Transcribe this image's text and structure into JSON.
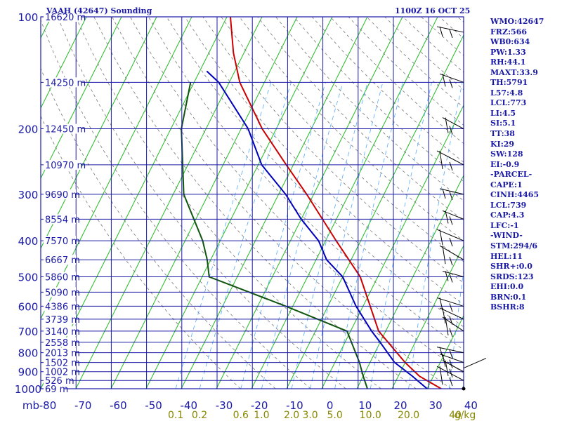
{
  "header": {
    "left": "VAAH (42647) Sounding",
    "right": "1100Z 16 OCT 25"
  },
  "indices": [
    "WMO:42647",
    "FRZ:566",
    "WB0:634",
    "PW:1.33",
    "RH:44.1",
    "MAXT:33.9",
    "TH:5791",
    "L57:4.8",
    "LCL:773",
    "LI:4.5",
    "SI:5.1",
    "TT:38",
    "KI:29",
    "SW:128",
    "EI:-0.9",
    "-PARCEL-",
    "CAPE:1",
    "CINH:4465",
    "LCL:739",
    "CAP:4.3",
    "LFC:-1",
    "-WIND-",
    "STM:294/6",
    "HEL:11",
    "SHR+:0.0",
    "SRDS:123",
    "EHI:0.0",
    "BRN:0.1",
    "BSHR:8"
  ],
  "colors": {
    "frame": "#1a1aa6",
    "isotherm": "#22bb22",
    "dry_adiabat": "#777777",
    "mixing_ratio": "#55aaff",
    "temperature": "#cc0000",
    "dewpoint": "#115511",
    "parcel": "#0000bb",
    "wind": "#000000"
  },
  "chart_data": {
    "type": "line",
    "title": "VAAH (42647) Sounding",
    "x_unit_label": "mb",
    "x_ticks": [
      -80,
      -70,
      -60,
      -50,
      -40,
      -30,
      -20,
      -10,
      0,
      10,
      20,
      30,
      40
    ],
    "x_tick_labels": [
      "-80",
      "-70",
      "-60",
      "-50",
      "-40",
      "-30",
      "-20",
      "-10",
      "0",
      "10",
      "20",
      "30",
      "40"
    ],
    "y_ticks": [
      100,
      200,
      300,
      400,
      500,
      600,
      700,
      800,
      900,
      1000
    ],
    "y_tick_labels": [
      "100",
      "200",
      "300",
      "400",
      "500",
      "600",
      "700",
      "800",
      "900",
      "1000"
    ],
    "height_labels": [
      {
        "p": 100,
        "label": "16620 m"
      },
      {
        "p": 150,
        "label": "14250 m"
      },
      {
        "p": 200,
        "label": "12450 m"
      },
      {
        "p": 250,
        "label": "10970 m"
      },
      {
        "p": 300,
        "label": "9690 m"
      },
      {
        "p": 350,
        "label": "8554 m"
      },
      {
        "p": 400,
        "label": "7570 m"
      },
      {
        "p": 450,
        "label": "6667 m"
      },
      {
        "p": 500,
        "label": "5860 m"
      },
      {
        "p": 550,
        "label": "5090 m"
      },
      {
        "p": 600,
        "label": "4386 m"
      },
      {
        "p": 650,
        "label": "3739 m"
      },
      {
        "p": 700,
        "label": "3140 m"
      },
      {
        "p": 750,
        "label": "2558 m"
      },
      {
        "p": 800,
        "label": "2013 m"
      },
      {
        "p": 850,
        "label": "1502 m"
      },
      {
        "p": 900,
        "label": "1002 m"
      },
      {
        "p": 950,
        "label": "526 m"
      },
      {
        "p": 1000,
        "label": "69 m"
      }
    ],
    "mixing_ratio_labels": [
      "0.1",
      "0.2",
      "0.6",
      "1.0",
      "2.0",
      "3.0",
      "5.0",
      "10.0",
      "20.0",
      "40"
    ],
    "mixing_ratio_unit": "g/kg",
    "series": [
      {
        "name": "Temperature",
        "points": [
          [
            1000,
            34
          ],
          [
            925,
            26
          ],
          [
            850,
            20
          ],
          [
            700,
            8
          ],
          [
            500,
            -5
          ],
          [
            400,
            -17
          ],
          [
            300,
            -32
          ],
          [
            250,
            -42
          ],
          [
            200,
            -54
          ],
          [
            150,
            -67
          ],
          [
            125,
            -73
          ],
          [
            100,
            -79
          ]
        ]
      },
      {
        "name": "Dewpoint",
        "points": [
          [
            1000,
            13
          ],
          [
            925,
            10
          ],
          [
            850,
            7
          ],
          [
            700,
            -1
          ],
          [
            600,
            -22
          ],
          [
            500,
            -48
          ],
          [
            450,
            -51
          ],
          [
            400,
            -55
          ],
          [
            300,
            -67
          ],
          [
            200,
            -77
          ],
          [
            150,
            -81
          ]
        ]
      },
      {
        "name": "Parcel",
        "points": [
          [
            1000,
            30
          ],
          [
            925,
            24
          ],
          [
            850,
            17
          ],
          [
            750,
            10
          ],
          [
            700,
            6
          ],
          [
            600,
            -2
          ],
          [
            500,
            -10
          ],
          [
            450,
            -17
          ],
          [
            400,
            -22
          ],
          [
            350,
            -30
          ],
          [
            300,
            -38
          ],
          [
            250,
            -49
          ],
          [
            200,
            -58
          ],
          [
            150,
            -73
          ],
          [
            140,
            -78
          ]
        ]
      }
    ]
  }
}
